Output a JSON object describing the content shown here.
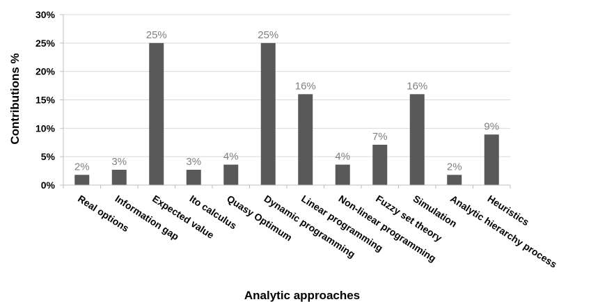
{
  "chart_data": {
    "type": "bar",
    "xlabel": "Analytic approaches",
    "ylabel": "Contributions %",
    "ylim": [
      0,
      30
    ],
    "yticks": [
      0,
      5,
      10,
      15,
      20,
      25,
      30
    ],
    "ytick_labels": [
      "0%",
      "5%",
      "10%",
      "15%",
      "20%",
      "25%",
      "30%"
    ],
    "grid": true,
    "bar_color": "#595959",
    "categories": [
      "Real options",
      "Information gap",
      "Expected value",
      "Ito calculus",
      "Quasy Optimum",
      "Dynamic programming",
      "Linear programming",
      "Non-linear programming",
      "Fuzzy set theory",
      "Simulation",
      "Analytic hierarchy process",
      "Heuristics"
    ],
    "values": [
      1.8,
      2.7,
      25,
      2.7,
      3.6,
      25,
      16,
      3.6,
      7.1,
      16,
      1.8,
      8.9
    ],
    "data_labels": [
      "2%",
      "3%",
      "25%",
      "3%",
      "4%",
      "25%",
      "16%",
      "4%",
      "7%",
      "16%",
      "2%",
      "9%"
    ]
  }
}
